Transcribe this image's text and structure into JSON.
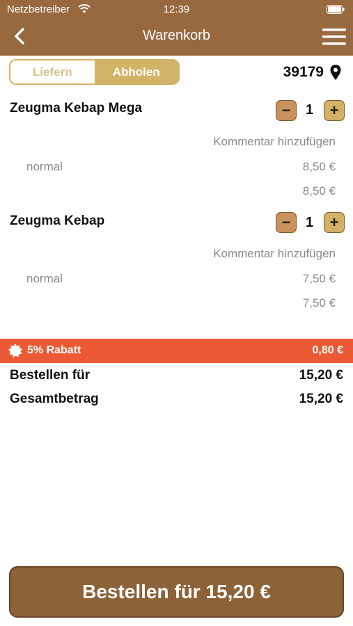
{
  "status_bar": {
    "carrier": "Netzbetreiber",
    "time": "12:39"
  },
  "nav": {
    "title": "Warenkorb"
  },
  "order_mode": {
    "options": [
      "Liefern",
      "Abholen"
    ],
    "selected": "Abholen"
  },
  "location": {
    "zip": "39179"
  },
  "cart": {
    "items": [
      {
        "name": "Zeugma Kebap Mega",
        "quantity": "1",
        "comment_label": "Kommentar hinzufügen",
        "variant": "normal",
        "variant_price": "8,50 €",
        "total": "8,50 €"
      },
      {
        "name": "Zeugma Kebap",
        "quantity": "1",
        "comment_label": "Kommentar hinzufügen",
        "variant": "normal",
        "variant_price": "7,50 €",
        "total": "7,50 €"
      }
    ]
  },
  "discount": {
    "label": "5% Rabatt",
    "value": "0,80 €"
  },
  "summary": {
    "order_for_label": "Bestellen für",
    "order_for_value": "15,20 €",
    "total_label": "Gesamtbetrag",
    "total_value": "15,20 €"
  },
  "order_button": {
    "label": "Bestellen für 15,20 €"
  },
  "colors": {
    "header": "#98693f",
    "accent_gold": "#d3b366",
    "discount": "#ec5a35",
    "order_button": "#8c6238"
  }
}
